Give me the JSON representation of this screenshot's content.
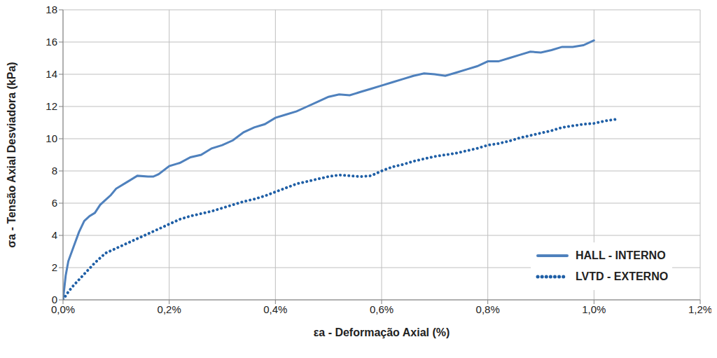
{
  "chart_data": {
    "type": "line",
    "x_label": "εa - Deformação Axial (%)",
    "y_label": "σa - Tensão Axial Desviadora (kPa)",
    "xlim": [
      0,
      1.2
    ],
    "xticks": [
      {
        "value": 0,
        "label": "0,0%"
      },
      {
        "value": 0.2,
        "label": "0,2%"
      },
      {
        "value": 0.4,
        "label": "0,4%"
      },
      {
        "value": 0.6,
        "label": "0,6%"
      },
      {
        "value": 0.8,
        "label": "0,8%"
      },
      {
        "value": 1.0,
        "label": "1,0%"
      },
      {
        "value": 1.2,
        "label": "1,2%"
      }
    ],
    "ylim": [
      0,
      18
    ],
    "yticks": [
      0,
      2,
      4,
      6,
      8,
      10,
      12,
      14,
      16,
      18
    ],
    "grid": true,
    "legend": "lower right",
    "series": [
      {
        "name": "HALL - INTERNO",
        "color": "#4f81bd",
        "line_style": "solid",
        "x": [
          0,
          0.005,
          0.01,
          0.02,
          0.03,
          0.04,
          0.05,
          0.06,
          0.07,
          0.08,
          0.09,
          0.1,
          0.12,
          0.14,
          0.16,
          0.17,
          0.18,
          0.2,
          0.22,
          0.24,
          0.26,
          0.28,
          0.3,
          0.32,
          0.34,
          0.36,
          0.38,
          0.4,
          0.42,
          0.44,
          0.46,
          0.48,
          0.5,
          0.52,
          0.54,
          0.56,
          0.58,
          0.6,
          0.62,
          0.64,
          0.66,
          0.68,
          0.7,
          0.72,
          0.74,
          0.76,
          0.78,
          0.8,
          0.82,
          0.84,
          0.86,
          0.88,
          0.9,
          0.92,
          0.94,
          0.96,
          0.98,
          1.0
        ],
        "values": [
          0,
          1.5,
          2.4,
          3.3,
          4.2,
          4.9,
          5.2,
          5.4,
          5.9,
          6.2,
          6.5,
          6.9,
          7.3,
          7.7,
          7.65,
          7.65,
          7.8,
          8.3,
          8.5,
          8.85,
          9.0,
          9.4,
          9.6,
          9.9,
          10.4,
          10.7,
          10.9,
          11.3,
          11.5,
          11.7,
          12.0,
          12.3,
          12.6,
          12.75,
          12.7,
          12.9,
          13.1,
          13.3,
          13.5,
          13.7,
          13.9,
          14.05,
          14.0,
          13.9,
          14.1,
          14.3,
          14.5,
          14.8,
          14.8,
          15.0,
          15.2,
          15.4,
          15.35,
          15.5,
          15.7,
          15.7,
          15.8,
          16.1
        ]
      },
      {
        "name": "LVTD - EXTERNO",
        "color": "#1f5fa6",
        "line_style": "dotted",
        "x": [
          0,
          0.01,
          0.02,
          0.04,
          0.06,
          0.08,
          0.1,
          0.12,
          0.14,
          0.16,
          0.18,
          0.2,
          0.22,
          0.24,
          0.26,
          0.28,
          0.3,
          0.32,
          0.34,
          0.36,
          0.38,
          0.4,
          0.42,
          0.44,
          0.46,
          0.48,
          0.5,
          0.52,
          0.54,
          0.56,
          0.58,
          0.6,
          0.62,
          0.64,
          0.66,
          0.68,
          0.7,
          0.72,
          0.74,
          0.76,
          0.78,
          0.8,
          0.82,
          0.84,
          0.86,
          0.88,
          0.9,
          0.92,
          0.94,
          0.96,
          0.98,
          1.0,
          1.02,
          1.04
        ],
        "values": [
          0,
          0.5,
          0.9,
          1.6,
          2.3,
          2.9,
          3.2,
          3.5,
          3.8,
          4.1,
          4.4,
          4.7,
          5.0,
          5.2,
          5.35,
          5.5,
          5.7,
          5.9,
          6.1,
          6.25,
          6.45,
          6.7,
          6.95,
          7.2,
          7.35,
          7.5,
          7.65,
          7.75,
          7.7,
          7.65,
          7.7,
          8.0,
          8.25,
          8.4,
          8.6,
          8.75,
          8.9,
          9.0,
          9.1,
          9.25,
          9.4,
          9.6,
          9.7,
          9.85,
          10.05,
          10.2,
          10.35,
          10.5,
          10.7,
          10.8,
          10.9,
          10.95,
          11.1,
          11.2
        ]
      }
    ]
  }
}
